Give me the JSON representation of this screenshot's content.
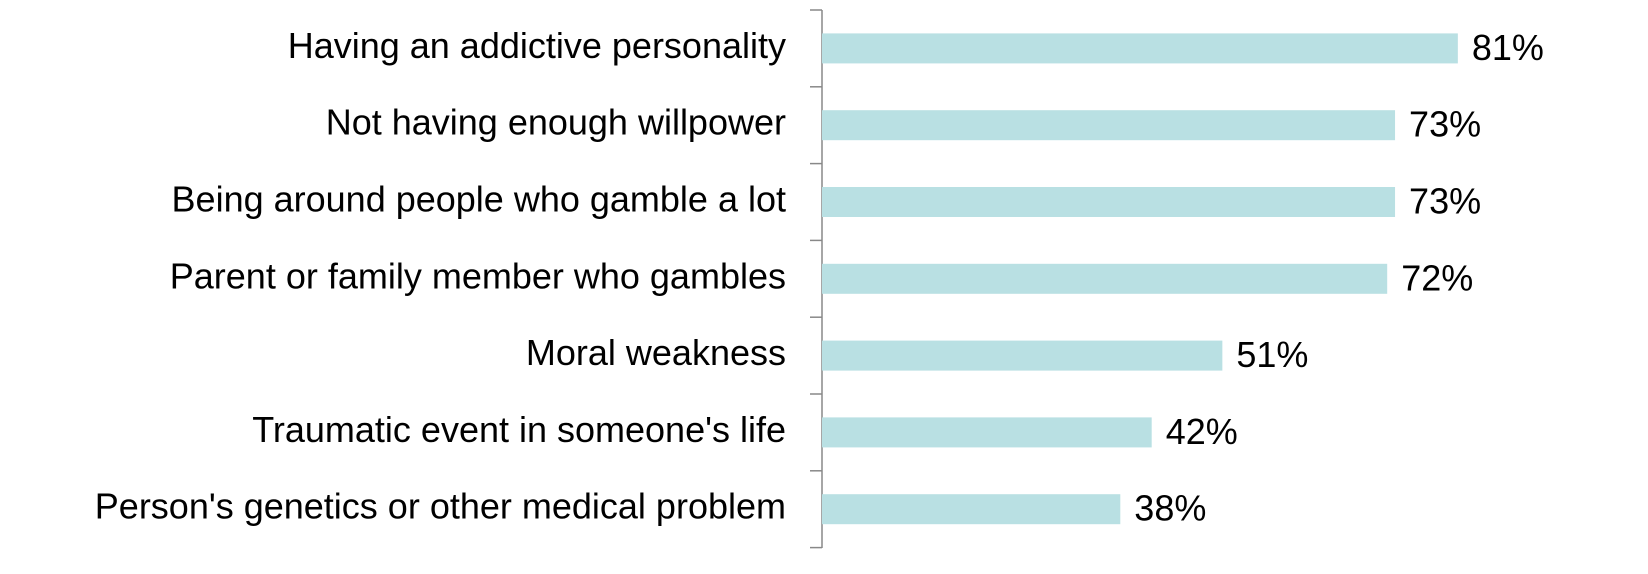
{
  "chart_data": {
    "type": "bar",
    "orientation": "horizontal",
    "categories": [
      "Having an addictive personality",
      "Not having enough willpower",
      "Being around people who gamble a lot",
      "Parent or family member who gambles",
      "Moral weakness",
      "Traumatic event in someone's life",
      "Person's genetics or other medical problem"
    ],
    "values": [
      81,
      73,
      73,
      72,
      51,
      42,
      38
    ],
    "value_labels": [
      "81%",
      "73%",
      "73%",
      "72%",
      "51%",
      "42%",
      "38%"
    ],
    "color": "#b9e0e3"
  }
}
